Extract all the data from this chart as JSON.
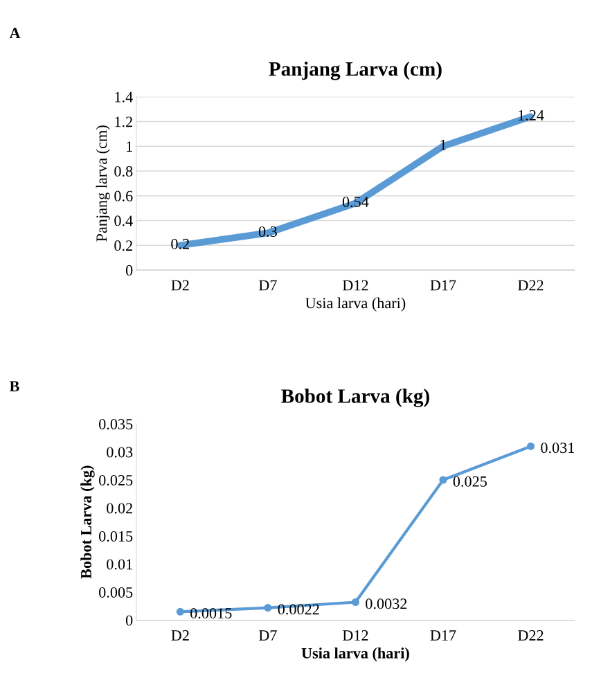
{
  "chart_data": [
    {
      "type": "line",
      "title": "Panjang Larva (cm)",
      "xlabel": "Usia larva (hari)",
      "ylabel": "Panjang larva (cm)",
      "categories": [
        "D2",
        "D7",
        "D12",
        "D17",
        "D22"
      ],
      "series": [
        {
          "color": "#5b9bd5",
          "values": [
            0.2,
            0.3,
            0.54,
            1,
            1.24
          ]
        }
      ],
      "ylim": [
        0,
        1.4
      ],
      "yticks": [
        0,
        0.2,
        0.4,
        0.6,
        0.8,
        1,
        1.2,
        1.4
      ],
      "grid": "y",
      "marker": "none",
      "line_style": "solid",
      "data_labels": true,
      "legend": false,
      "annotations": [
        "A"
      ]
    },
    {
      "type": "line",
      "title": "Bobot Larva (kg)",
      "xlabel": "Usia larva (hari)",
      "ylabel": "Bobot Larva (kg)",
      "categories": [
        "D2",
        "D7",
        "D12",
        "D17",
        "D22"
      ],
      "series": [
        {
          "color": "#5b9bd5",
          "values": [
            0.0015,
            0.0022,
            0.0032,
            0.025,
            0.031
          ]
        }
      ],
      "ylim": [
        0,
        0.035
      ],
      "yticks": [
        0,
        0.005,
        0.01,
        0.015,
        0.02,
        0.025,
        0.03,
        0.035
      ],
      "grid": false,
      "marker": "circle",
      "line_style": "solid",
      "data_labels": true,
      "legend": false,
      "annotations": [
        "B"
      ]
    }
  ]
}
